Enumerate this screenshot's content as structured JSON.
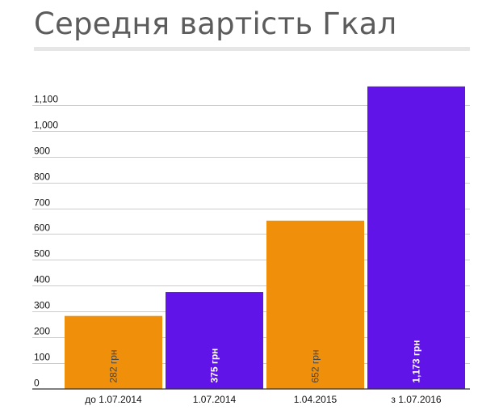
{
  "title": "Середня вартість Гкал",
  "colors": {
    "orange": "#f0900a",
    "purple": "#6114e8",
    "grid": "#cccccc",
    "axis": "#333333"
  },
  "chart_data": {
    "type": "bar",
    "title": "Середня вартість Гкал",
    "xlabel": "",
    "ylabel": "",
    "ylim": [
      0,
      1150
    ],
    "yticks": [
      0,
      100,
      200,
      300,
      400,
      500,
      600,
      700,
      800,
      900,
      1000,
      1100
    ],
    "ytick_labels": [
      "0",
      "100",
      "200",
      "300",
      "400",
      "500",
      "600",
      "700",
      "800",
      "900",
      "1,000",
      "1,100"
    ],
    "grid": true,
    "categories": [
      "до 1.07.2014",
      "1.07.2014",
      "1.04.2015",
      "з 1.07.2016"
    ],
    "values": [
      282,
      375,
      652,
      1173
    ],
    "data_labels": [
      "282 грн",
      "375 грн",
      "652 грн",
      "1,173 грн"
    ],
    "bar_colors": [
      "#f0900a",
      "#6114e8",
      "#f0900a",
      "#6114e8"
    ],
    "label_colors": [
      "#444444",
      "#ffffff",
      "#444444",
      "#ffffff"
    ]
  }
}
